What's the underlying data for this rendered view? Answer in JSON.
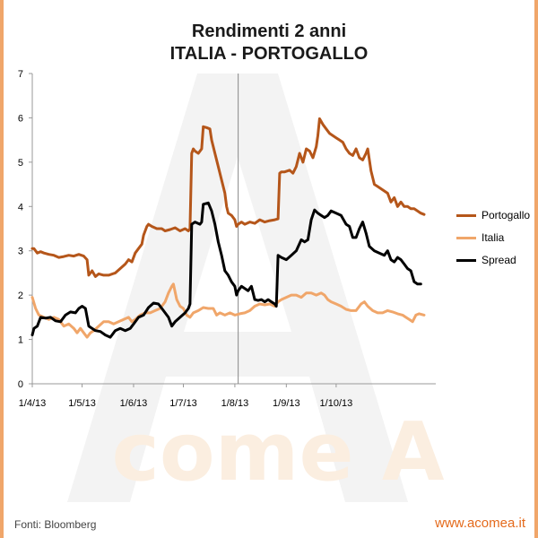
{
  "chart_data": {
    "type": "line",
    "title": "Rendimenti 2 anni",
    "subtitle": "ITALIA - PORTOGALLO",
    "xlabel": "",
    "ylabel": "",
    "ylim": [
      0,
      7
    ],
    "y_ticks": [
      "0",
      "1",
      "2",
      "3",
      "4",
      "5",
      "6",
      "7"
    ],
    "x_ticks": [
      "1/4/13",
      "1/5/13",
      "1/6/13",
      "1/7/13",
      "1/8/13",
      "1/9/13",
      "1/10/13"
    ],
    "x_range_days": [
      0,
      243
    ],
    "reference_line_day": 124,
    "x_unit": "days since 1/4/13",
    "legend_position": "right",
    "series": [
      {
        "name": "Portogallo",
        "color": "#b5561a",
        "points": [
          [
            0,
            3.05
          ],
          [
            1,
            3.05
          ],
          [
            2,
            3.0
          ],
          [
            3,
            2.95
          ],
          [
            5,
            2.98
          ],
          [
            7,
            2.95
          ],
          [
            10,
            2.92
          ],
          [
            13,
            2.9
          ],
          [
            16,
            2.85
          ],
          [
            19,
            2.87
          ],
          [
            22,
            2.9
          ],
          [
            25,
            2.88
          ],
          [
            28,
            2.92
          ],
          [
            31,
            2.88
          ],
          [
            33,
            2.8
          ],
          [
            34,
            2.45
          ],
          [
            36,
            2.55
          ],
          [
            38,
            2.42
          ],
          [
            40,
            2.48
          ],
          [
            43,
            2.45
          ],
          [
            46,
            2.45
          ],
          [
            50,
            2.5
          ],
          [
            53,
            2.6
          ],
          [
            56,
            2.7
          ],
          [
            58,
            2.8
          ],
          [
            60,
            2.75
          ],
          [
            62,
            2.95
          ],
          [
            64,
            3.05
          ],
          [
            66,
            3.15
          ],
          [
            67,
            3.35
          ],
          [
            69,
            3.55
          ],
          [
            70,
            3.6
          ],
          [
            72,
            3.55
          ],
          [
            75,
            3.5
          ],
          [
            78,
            3.5
          ],
          [
            80,
            3.45
          ],
          [
            83,
            3.48
          ],
          [
            86,
            3.52
          ],
          [
            89,
            3.45
          ],
          [
            92,
            3.5
          ],
          [
            94,
            3.45
          ],
          [
            95,
            3.5
          ],
          [
            96,
            5.2
          ],
          [
            97,
            5.3
          ],
          [
            98,
            5.25
          ],
          [
            100,
            5.2
          ],
          [
            102,
            5.3
          ],
          [
            103,
            5.8
          ],
          [
            105,
            5.78
          ],
          [
            107,
            5.75
          ],
          [
            108,
            5.5
          ],
          [
            110,
            5.2
          ],
          [
            112,
            4.9
          ],
          [
            114,
            4.6
          ],
          [
            116,
            4.3
          ],
          [
            117,
            4.0
          ],
          [
            118,
            3.85
          ],
          [
            120,
            3.8
          ],
          [
            122,
            3.7
          ],
          [
            123,
            3.55
          ],
          [
            124,
            3.6
          ],
          [
            126,
            3.65
          ],
          [
            128,
            3.6
          ],
          [
            131,
            3.65
          ],
          [
            134,
            3.62
          ],
          [
            137,
            3.7
          ],
          [
            140,
            3.65
          ],
          [
            143,
            3.68
          ],
          [
            146,
            3.7
          ],
          [
            148,
            3.72
          ],
          [
            149,
            4.75
          ],
          [
            150,
            4.78
          ],
          [
            152,
            4.78
          ],
          [
            155,
            4.82
          ],
          [
            157,
            4.75
          ],
          [
            159,
            4.9
          ],
          [
            161,
            5.2
          ],
          [
            163,
            5.0
          ],
          [
            165,
            5.3
          ],
          [
            167,
            5.25
          ],
          [
            169,
            5.1
          ],
          [
            171,
            5.35
          ],
          [
            172,
            5.6
          ],
          [
            173,
            5.98
          ],
          [
            175,
            5.85
          ],
          [
            177,
            5.75
          ],
          [
            179,
            5.65
          ],
          [
            181,
            5.6
          ],
          [
            183,
            5.55
          ],
          [
            185,
            5.5
          ],
          [
            187,
            5.45
          ],
          [
            189,
            5.3
          ],
          [
            191,
            5.2
          ],
          [
            193,
            5.15
          ],
          [
            195,
            5.3
          ],
          [
            197,
            5.1
          ],
          [
            199,
            5.05
          ],
          [
            201,
            5.2
          ],
          [
            202,
            5.3
          ],
          [
            204,
            4.8
          ],
          [
            206,
            4.5
          ],
          [
            208,
            4.45
          ],
          [
            210,
            4.4
          ],
          [
            212,
            4.35
          ],
          [
            214,
            4.3
          ],
          [
            216,
            4.1
          ],
          [
            218,
            4.2
          ],
          [
            220,
            4.0
          ],
          [
            222,
            4.1
          ],
          [
            224,
            4.0
          ],
          [
            226,
            4.0
          ],
          [
            228,
            3.95
          ],
          [
            230,
            3.95
          ],
          [
            232,
            3.9
          ],
          [
            234,
            3.85
          ],
          [
            236,
            3.82
          ]
        ]
      },
      {
        "name": "Italia",
        "color": "#f0a66a",
        "points": [
          [
            0,
            1.95
          ],
          [
            2,
            1.7
          ],
          [
            4,
            1.55
          ],
          [
            7,
            1.5
          ],
          [
            10,
            1.45
          ],
          [
            13,
            1.5
          ],
          [
            16,
            1.45
          ],
          [
            19,
            1.3
          ],
          [
            22,
            1.35
          ],
          [
            25,
            1.25
          ],
          [
            27,
            1.15
          ],
          [
            29,
            1.25
          ],
          [
            31,
            1.15
          ],
          [
            33,
            1.05
          ],
          [
            35,
            1.15
          ],
          [
            37,
            1.2
          ],
          [
            40,
            1.3
          ],
          [
            43,
            1.4
          ],
          [
            46,
            1.4
          ],
          [
            49,
            1.35
          ],
          [
            52,
            1.4
          ],
          [
            55,
            1.45
          ],
          [
            58,
            1.5
          ],
          [
            60,
            1.4
          ],
          [
            62,
            1.45
          ],
          [
            65,
            1.55
          ],
          [
            68,
            1.6
          ],
          [
            71,
            1.6
          ],
          [
            74,
            1.65
          ],
          [
            77,
            1.7
          ],
          [
            80,
            1.85
          ],
          [
            82,
            2.05
          ],
          [
            84,
            2.2
          ],
          [
            85,
            2.25
          ],
          [
            87,
            1.9
          ],
          [
            89,
            1.75
          ],
          [
            91,
            1.7
          ],
          [
            93,
            1.55
          ],
          [
            95,
            1.5
          ],
          [
            97,
            1.6
          ],
          [
            100,
            1.65
          ],
          [
            103,
            1.72
          ],
          [
            106,
            1.7
          ],
          [
            109,
            1.7
          ],
          [
            111,
            1.55
          ],
          [
            113,
            1.6
          ],
          [
            116,
            1.55
          ],
          [
            119,
            1.6
          ],
          [
            122,
            1.55
          ],
          [
            125,
            1.58
          ],
          [
            128,
            1.6
          ],
          [
            131,
            1.65
          ],
          [
            134,
            1.75
          ],
          [
            137,
            1.8
          ],
          [
            140,
            1.78
          ],
          [
            143,
            1.8
          ],
          [
            146,
            1.75
          ],
          [
            148,
            1.85
          ],
          [
            150,
            1.9
          ],
          [
            153,
            1.95
          ],
          [
            156,
            2.0
          ],
          [
            159,
            2.0
          ],
          [
            162,
            1.95
          ],
          [
            165,
            2.05
          ],
          [
            168,
            2.05
          ],
          [
            171,
            2.0
          ],
          [
            174,
            2.05
          ],
          [
            176,
            2.0
          ],
          [
            178,
            1.9
          ],
          [
            180,
            1.85
          ],
          [
            183,
            1.8
          ],
          [
            186,
            1.75
          ],
          [
            189,
            1.68
          ],
          [
            192,
            1.65
          ],
          [
            195,
            1.65
          ],
          [
            198,
            1.8
          ],
          [
            200,
            1.85
          ],
          [
            202,
            1.75
          ],
          [
            205,
            1.65
          ],
          [
            208,
            1.6
          ],
          [
            211,
            1.6
          ],
          [
            214,
            1.65
          ],
          [
            217,
            1.62
          ],
          [
            220,
            1.58
          ],
          [
            223,
            1.55
          ],
          [
            225,
            1.5
          ],
          [
            227,
            1.45
          ],
          [
            229,
            1.4
          ],
          [
            231,
            1.55
          ],
          [
            233,
            1.58
          ],
          [
            236,
            1.55
          ]
        ]
      },
      {
        "name": "Spread",
        "color": "#000000",
        "points": [
          [
            0,
            1.1
          ],
          [
            1,
            1.25
          ],
          [
            3,
            1.3
          ],
          [
            5,
            1.5
          ],
          [
            8,
            1.48
          ],
          [
            11,
            1.5
          ],
          [
            14,
            1.42
          ],
          [
            17,
            1.4
          ],
          [
            20,
            1.55
          ],
          [
            23,
            1.62
          ],
          [
            26,
            1.6
          ],
          [
            28,
            1.7
          ],
          [
            30,
            1.75
          ],
          [
            32,
            1.7
          ],
          [
            34,
            1.3
          ],
          [
            36,
            1.25
          ],
          [
            38,
            1.2
          ],
          [
            41,
            1.18
          ],
          [
            44,
            1.1
          ],
          [
            47,
            1.05
          ],
          [
            50,
            1.2
          ],
          [
            53,
            1.25
          ],
          [
            56,
            1.2
          ],
          [
            59,
            1.25
          ],
          [
            61,
            1.35
          ],
          [
            64,
            1.5
          ],
          [
            67,
            1.55
          ],
          [
            70,
            1.72
          ],
          [
            73,
            1.82
          ],
          [
            76,
            1.8
          ],
          [
            79,
            1.65
          ],
          [
            82,
            1.5
          ],
          [
            84,
            1.3
          ],
          [
            86,
            1.4
          ],
          [
            89,
            1.5
          ],
          [
            92,
            1.6
          ],
          [
            94,
            1.7
          ],
          [
            95,
            1.8
          ],
          [
            96,
            3.6
          ],
          [
            98,
            3.65
          ],
          [
            101,
            3.6
          ],
          [
            102,
            3.65
          ],
          [
            103,
            4.05
          ],
          [
            106,
            4.08
          ],
          [
            108,
            3.9
          ],
          [
            110,
            3.6
          ],
          [
            112,
            3.2
          ],
          [
            114,
            2.9
          ],
          [
            116,
            2.55
          ],
          [
            118,
            2.45
          ],
          [
            120,
            2.3
          ],
          [
            122,
            2.2
          ],
          [
            123,
            2.0
          ],
          [
            124,
            2.1
          ],
          [
            126,
            2.2
          ],
          [
            128,
            2.15
          ],
          [
            130,
            2.1
          ],
          [
            132,
            2.2
          ],
          [
            134,
            1.9
          ],
          [
            136,
            1.88
          ],
          [
            138,
            1.9
          ],
          [
            140,
            1.85
          ],
          [
            142,
            1.9
          ],
          [
            144,
            1.85
          ],
          [
            146,
            1.8
          ],
          [
            147,
            1.75
          ],
          [
            148,
            2.9
          ],
          [
            150,
            2.85
          ],
          [
            153,
            2.8
          ],
          [
            156,
            2.9
          ],
          [
            159,
            3.0
          ],
          [
            162,
            3.25
          ],
          [
            164,
            3.2
          ],
          [
            166,
            3.25
          ],
          [
            168,
            3.7
          ],
          [
            170,
            3.92
          ],
          [
            172,
            3.85
          ],
          [
            174,
            3.8
          ],
          [
            176,
            3.75
          ],
          [
            178,
            3.8
          ],
          [
            180,
            3.9
          ],
          [
            183,
            3.85
          ],
          [
            186,
            3.8
          ],
          [
            189,
            3.6
          ],
          [
            191,
            3.55
          ],
          [
            193,
            3.3
          ],
          [
            195,
            3.3
          ],
          [
            197,
            3.5
          ],
          [
            199,
            3.65
          ],
          [
            201,
            3.4
          ],
          [
            203,
            3.1
          ],
          [
            206,
            3.0
          ],
          [
            209,
            2.95
          ],
          [
            212,
            2.9
          ],
          [
            214,
            3.0
          ],
          [
            216,
            2.8
          ],
          [
            218,
            2.75
          ],
          [
            220,
            2.85
          ],
          [
            222,
            2.8
          ],
          [
            224,
            2.7
          ],
          [
            226,
            2.6
          ],
          [
            228,
            2.55
          ],
          [
            230,
            2.3
          ],
          [
            232,
            2.25
          ],
          [
            234,
            2.25
          ]
        ]
      }
    ]
  },
  "watermark": {
    "letter": "A",
    "text": "come A"
  },
  "footer": {
    "source": "Fonti: Bloomberg",
    "site": "www.acomea.it"
  },
  "colors": {
    "portogallo": "#b5561a",
    "italia": "#f0a66a",
    "spread": "#000000",
    "frame": "#f0a66a",
    "site": "#e46a1c"
  }
}
